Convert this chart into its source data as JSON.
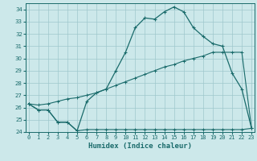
{
  "title": "",
  "xlabel": "Humidex (Indice chaleur)",
  "bg_color": "#cce8ea",
  "grid_color": "#9fc8cc",
  "line_color": "#1a6b6b",
  "x": [
    0,
    1,
    2,
    3,
    4,
    5,
    6,
    7,
    8,
    9,
    10,
    11,
    12,
    13,
    14,
    15,
    16,
    17,
    18,
    19,
    20,
    21,
    22,
    23
  ],
  "y_main": [
    26.3,
    25.8,
    25.8,
    24.8,
    24.8,
    24.1,
    26.5,
    27.2,
    27.5,
    29.0,
    30.5,
    32.5,
    33.3,
    33.2,
    33.8,
    34.2,
    33.8,
    32.5,
    31.8,
    31.2,
    31.0,
    28.8,
    27.5,
    24.3
  ],
  "y_flat": [
    26.3,
    25.8,
    25.8,
    24.8,
    24.8,
    24.1,
    24.2,
    24.2,
    24.2,
    24.2,
    24.2,
    24.2,
    24.2,
    24.2,
    24.2,
    24.2,
    24.2,
    24.2,
    24.2,
    24.2,
    24.2,
    24.2,
    24.2,
    24.3
  ],
  "y_diag": [
    26.3,
    26.2,
    26.3,
    26.5,
    26.7,
    26.8,
    27.0,
    27.2,
    27.5,
    27.8,
    28.1,
    28.4,
    28.7,
    29.0,
    29.3,
    29.5,
    29.8,
    30.0,
    30.2,
    30.5,
    30.5,
    30.5,
    30.5,
    24.3
  ],
  "ylim": [
    24,
    34.5
  ],
  "xlim": [
    -0.3,
    23.3
  ],
  "yticks": [
    24,
    25,
    26,
    27,
    28,
    29,
    30,
    31,
    32,
    33,
    34
  ],
  "xticks": [
    0,
    1,
    2,
    3,
    4,
    5,
    6,
    7,
    8,
    9,
    10,
    11,
    12,
    13,
    14,
    15,
    16,
    17,
    18,
    19,
    20,
    21,
    22,
    23
  ],
  "xlabel_fontsize": 6.5,
  "tick_fontsize": 5.0
}
